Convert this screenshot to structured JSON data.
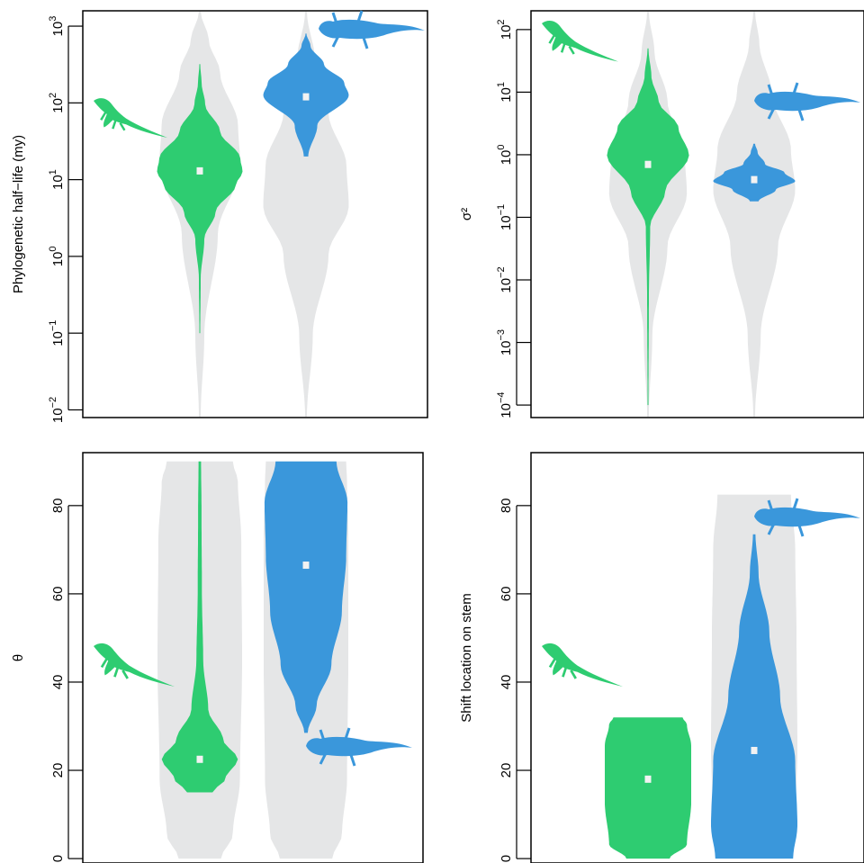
{
  "colors": {
    "prior": "#e5e6e7",
    "anole": "#2ecc71",
    "gecko": "#3a97db",
    "median_marker": "#f2f2f2",
    "frame": "#000000"
  },
  "icons": {
    "anole": "anole-lizard-icon",
    "gecko": "gecko-lizard-icon"
  },
  "chart_data": [
    {
      "type": "violin",
      "ylabel": "Phylogenetic half−life (my)",
      "scale": "log10",
      "ylim_log10": [
        -2.1,
        3.2
      ],
      "ticks": [
        {
          "value": 0.01,
          "base": "10",
          "exp": "−2"
        },
        {
          "value": 0.1,
          "base": "10",
          "exp": "−1"
        },
        {
          "value": 1,
          "base": "10",
          "exp": "0"
        },
        {
          "value": 10,
          "base": "10",
          "exp": "1"
        },
        {
          "value": 100,
          "base": "10",
          "exp": "2"
        },
        {
          "value": 1000,
          "base": "10",
          "exp": "3"
        }
      ],
      "series": [
        {
          "group": "anole",
          "prior_range": [
            0.008,
            2500
          ],
          "posterior_range": [
            0.1,
            320
          ],
          "posterior_median": 13
        },
        {
          "group": "gecko",
          "prior_range": [
            0.008,
            2500
          ],
          "posterior_range": [
            20,
            800
          ],
          "posterior_median": 120
        }
      ]
    },
    {
      "type": "violin",
      "ylabel": "σ²",
      "scale": "log10",
      "ylim_log10": [
        -4.2,
        2.3
      ],
      "ticks": [
        {
          "value": 0.0001,
          "base": "10",
          "exp": "−4"
        },
        {
          "value": 0.001,
          "base": "10",
          "exp": "−3"
        },
        {
          "value": 0.01,
          "base": "10",
          "exp": "−2"
        },
        {
          "value": 0.1,
          "base": "10",
          "exp": "−1"
        },
        {
          "value": 1,
          "base": "10",
          "exp": "0"
        },
        {
          "value": 10,
          "base": "10",
          "exp": "1"
        },
        {
          "value": 100,
          "base": "10",
          "exp": "2"
        }
      ],
      "series": [
        {
          "group": "anole",
          "prior_range": [
            5e-05,
            200
          ],
          "posterior_range": [
            0.0001,
            50
          ],
          "posterior_median": 0.7
        },
        {
          "group": "gecko",
          "prior_range": [
            5e-05,
            200
          ],
          "posterior_range": [
            0.18,
            1.5
          ],
          "posterior_median": 0.4
        }
      ]
    },
    {
      "type": "violin",
      "ylabel": "θ",
      "scale": "linear",
      "ylim": [
        -1,
        92
      ],
      "ticks": [
        {
          "value": 0,
          "label": "0"
        },
        {
          "value": 20,
          "label": "20"
        },
        {
          "value": 40,
          "label": "40"
        },
        {
          "value": 60,
          "label": "60"
        },
        {
          "value": 80,
          "label": "80"
        }
      ],
      "series": [
        {
          "group": "anole",
          "prior_range": [
            0,
            90
          ],
          "posterior_range": [
            15,
            90
          ],
          "posterior_median": 22.5
        },
        {
          "group": "gecko",
          "prior_range": [
            0,
            90
          ],
          "posterior_range": [
            28.5,
            90
          ],
          "posterior_median": 66.5
        }
      ]
    },
    {
      "type": "violin",
      "ylabel": "Shift location on stem",
      "scale": "linear",
      "ylim": [
        -1,
        92
      ],
      "ticks": [
        {
          "value": 0,
          "label": "0"
        },
        {
          "value": 20,
          "label": "20"
        },
        {
          "value": 40,
          "label": "40"
        },
        {
          "value": 60,
          "label": "60"
        },
        {
          "value": 80,
          "label": "80"
        }
      ],
      "series": [
        {
          "group": "anole",
          "prior_range": [
            0,
            32
          ],
          "posterior_range": [
            0,
            32
          ],
          "posterior_median": 18
        },
        {
          "group": "gecko",
          "prior_range": [
            0,
            82.5
          ],
          "posterior_range": [
            0,
            73.5
          ],
          "posterior_median": 24.5
        }
      ]
    }
  ]
}
